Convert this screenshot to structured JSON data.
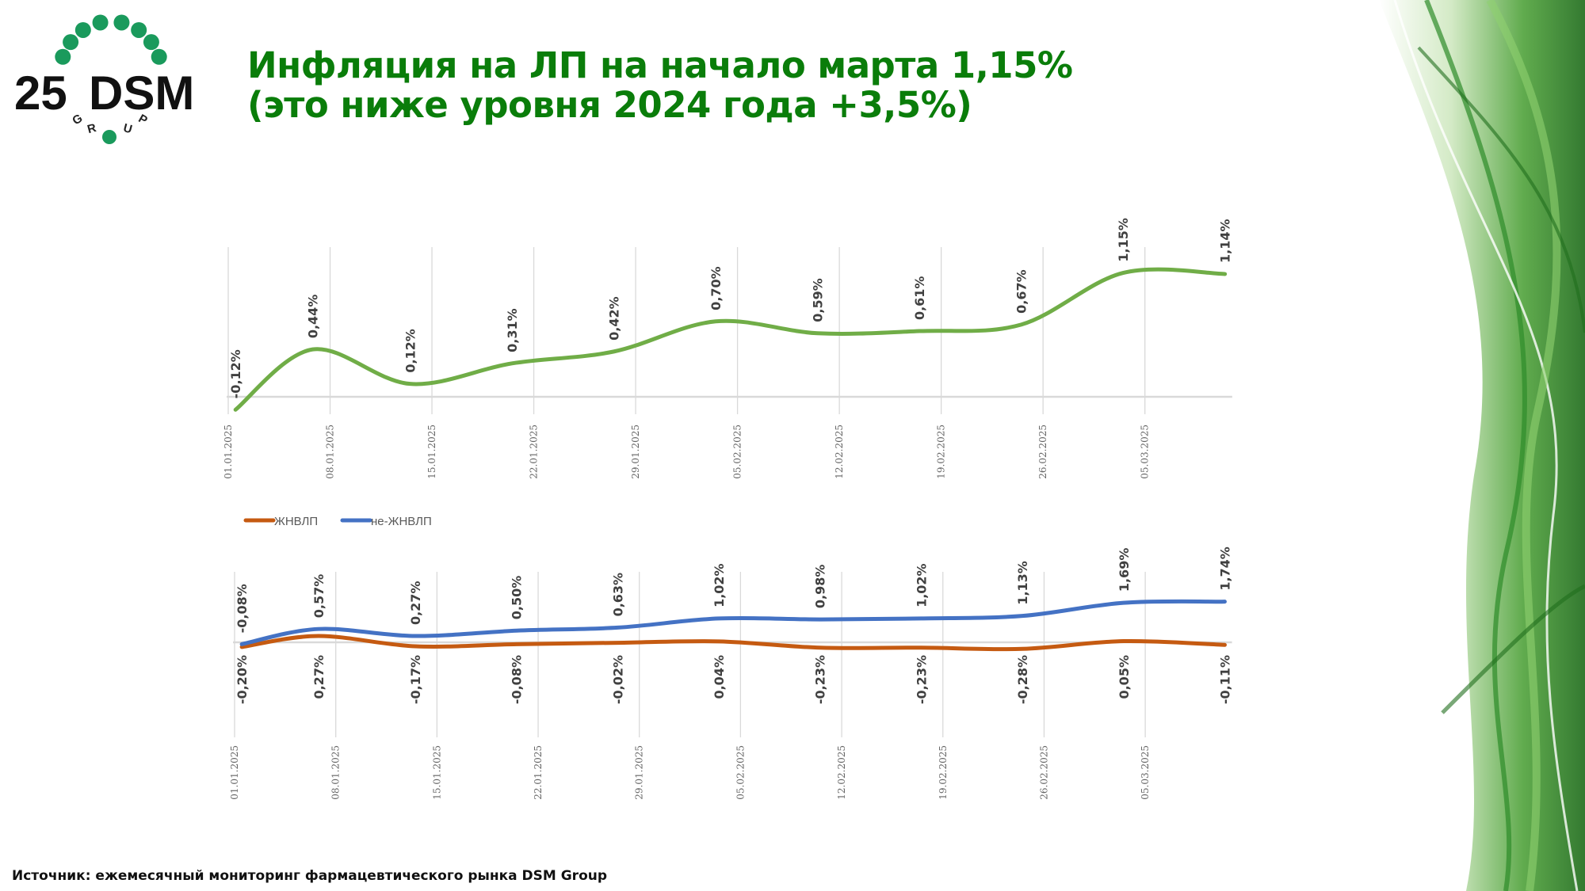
{
  "logo": {
    "number": "25",
    "brand": "DSM",
    "sub": "GROUP"
  },
  "title": {
    "line1": "Инфляция на ЛП на начало марта 1,15%",
    "line2": "(это ниже уровня 2024 года +3,5%)"
  },
  "footer": "Источник: ежемесячный мониторинг фармацевтического рынка DSM Group",
  "colors": {
    "title": "#0a7d0a",
    "total": "#70ad47",
    "vital": "#c55a11",
    "nonvital": "#4472c4"
  },
  "chart_data": [
    {
      "type": "line",
      "title": "",
      "x_unit": "days since 01.01.2025",
      "xlim": [
        0,
        69
      ],
      "ylim": [
        -0.16,
        1.4
      ],
      "grid": "vertical",
      "x_ticks": [
        "01.01.2025",
        "08.01.2025",
        "15.01.2025",
        "22.01.2025",
        "29.01.2025",
        "05.02.2025",
        "12.02.2025",
        "19.02.2025",
        "26.02.2025",
        "05.03.2025"
      ],
      "x": [
        0.5,
        5.8,
        12.5,
        19.5,
        26.5,
        33.5,
        40.5,
        47.5,
        54.5,
        61.5,
        68.5
      ],
      "series": [
        {
          "name": "Инфляция на ЛП",
          "color": "#70ad47",
          "values": [
            -0.12,
            0.44,
            0.12,
            0.31,
            0.42,
            0.7,
            0.59,
            0.61,
            0.67,
            1.15,
            1.14
          ],
          "labels": [
            "-0,12%",
            "0,44%",
            "0,12%",
            "0,31%",
            "0,42%",
            "0,70%",
            "0,59%",
            "0,61%",
            "0,67%",
            "1,15%",
            "1,14%"
          ]
        }
      ]
    },
    {
      "type": "line",
      "title": "",
      "x_unit": "days since 01.01.2025",
      "xlim": [
        0,
        69
      ],
      "ylim": [
        -4,
        3
      ],
      "grid": "vertical",
      "legend": "top-left",
      "x_ticks": [
        "01.01.2025",
        "08.01.2025",
        "15.01.2025",
        "22.01.2025",
        "29.01.2025",
        "05.02.2025",
        "12.02.2025",
        "19.02.2025",
        "26.02.2025",
        "05.03.2025"
      ],
      "x": [
        0.5,
        5.8,
        12.5,
        19.5,
        26.5,
        33.5,
        40.5,
        47.5,
        54.5,
        61.5,
        68.5
      ],
      "series": [
        {
          "name": "ЖНВЛП",
          "color": "#c55a11",
          "values": [
            -0.2,
            0.27,
            -0.17,
            -0.08,
            -0.02,
            0.04,
            -0.23,
            -0.23,
            -0.28,
            0.05,
            -0.11
          ],
          "labels": [
            "-0,20%",
            "0,27%",
            "-0,17%",
            "-0,08%",
            "-0,02%",
            "0,04%",
            "-0,23%",
            "-0,23%",
            "-0,28%",
            "0,05%",
            "-0,11%"
          ]
        },
        {
          "name": "не-ЖНВЛП",
          "color": "#4472c4",
          "values": [
            -0.08,
            0.57,
            0.27,
            0.5,
            0.63,
            1.02,
            0.98,
            1.02,
            1.13,
            1.69,
            1.74
          ],
          "labels": [
            "-0,08%",
            "0,57%",
            "0,27%",
            "0,50%",
            "0,63%",
            "1,02%",
            "0,98%",
            "1,02%",
            "1,13%",
            "1,69%",
            "1,74%"
          ]
        }
      ]
    }
  ]
}
